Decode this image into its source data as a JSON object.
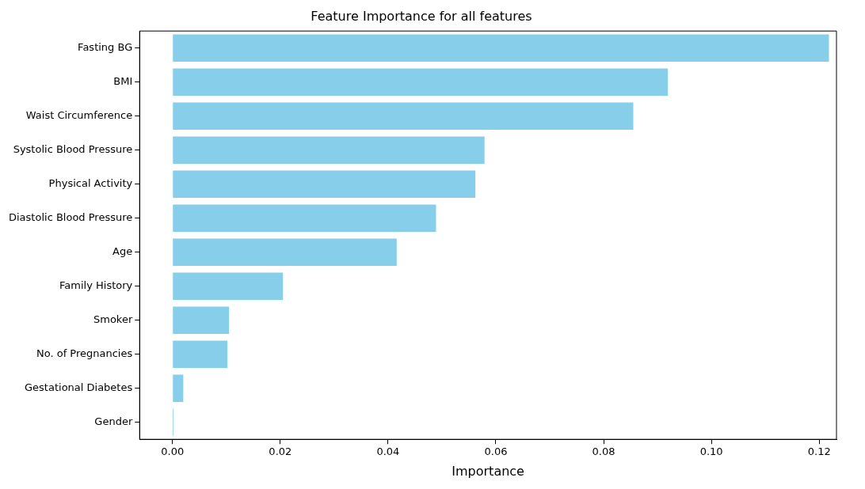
{
  "chart_data": {
    "type": "bar",
    "orientation": "horizontal",
    "title": "Feature Importance for all features",
    "xlabel": "Importance",
    "categories": [
      "Fasting BG",
      "BMI",
      "Waist Circumference",
      "Systolic Blood Pressure",
      "Physical Activity",
      "Diastolic Blood Pressure",
      "Age",
      "Family History",
      "Smoker",
      "No. of Pregnancies",
      "Gestational Diabetes",
      "Gender"
    ],
    "values": [
      0.1218,
      0.0919,
      0.0855,
      0.0579,
      0.0562,
      0.0489,
      0.0416,
      0.0205,
      0.0105,
      0.0102,
      0.002,
      0.0002
    ],
    "color": "#87ceeb",
    "xlim": [
      -0.0061,
      0.1232
    ],
    "xticks": [
      {
        "value": 0,
        "label": "0.00"
      },
      {
        "value": 0.02,
        "label": "0.02"
      },
      {
        "value": 0.04,
        "label": "0.04"
      },
      {
        "value": 0.06,
        "label": "0.06"
      },
      {
        "value": 0.08,
        "label": "0.08"
      },
      {
        "value": 0.1,
        "label": "0.10"
      },
      {
        "value": 0.12,
        "label": "0.12"
      }
    ],
    "grid": false,
    "legend": false
  }
}
